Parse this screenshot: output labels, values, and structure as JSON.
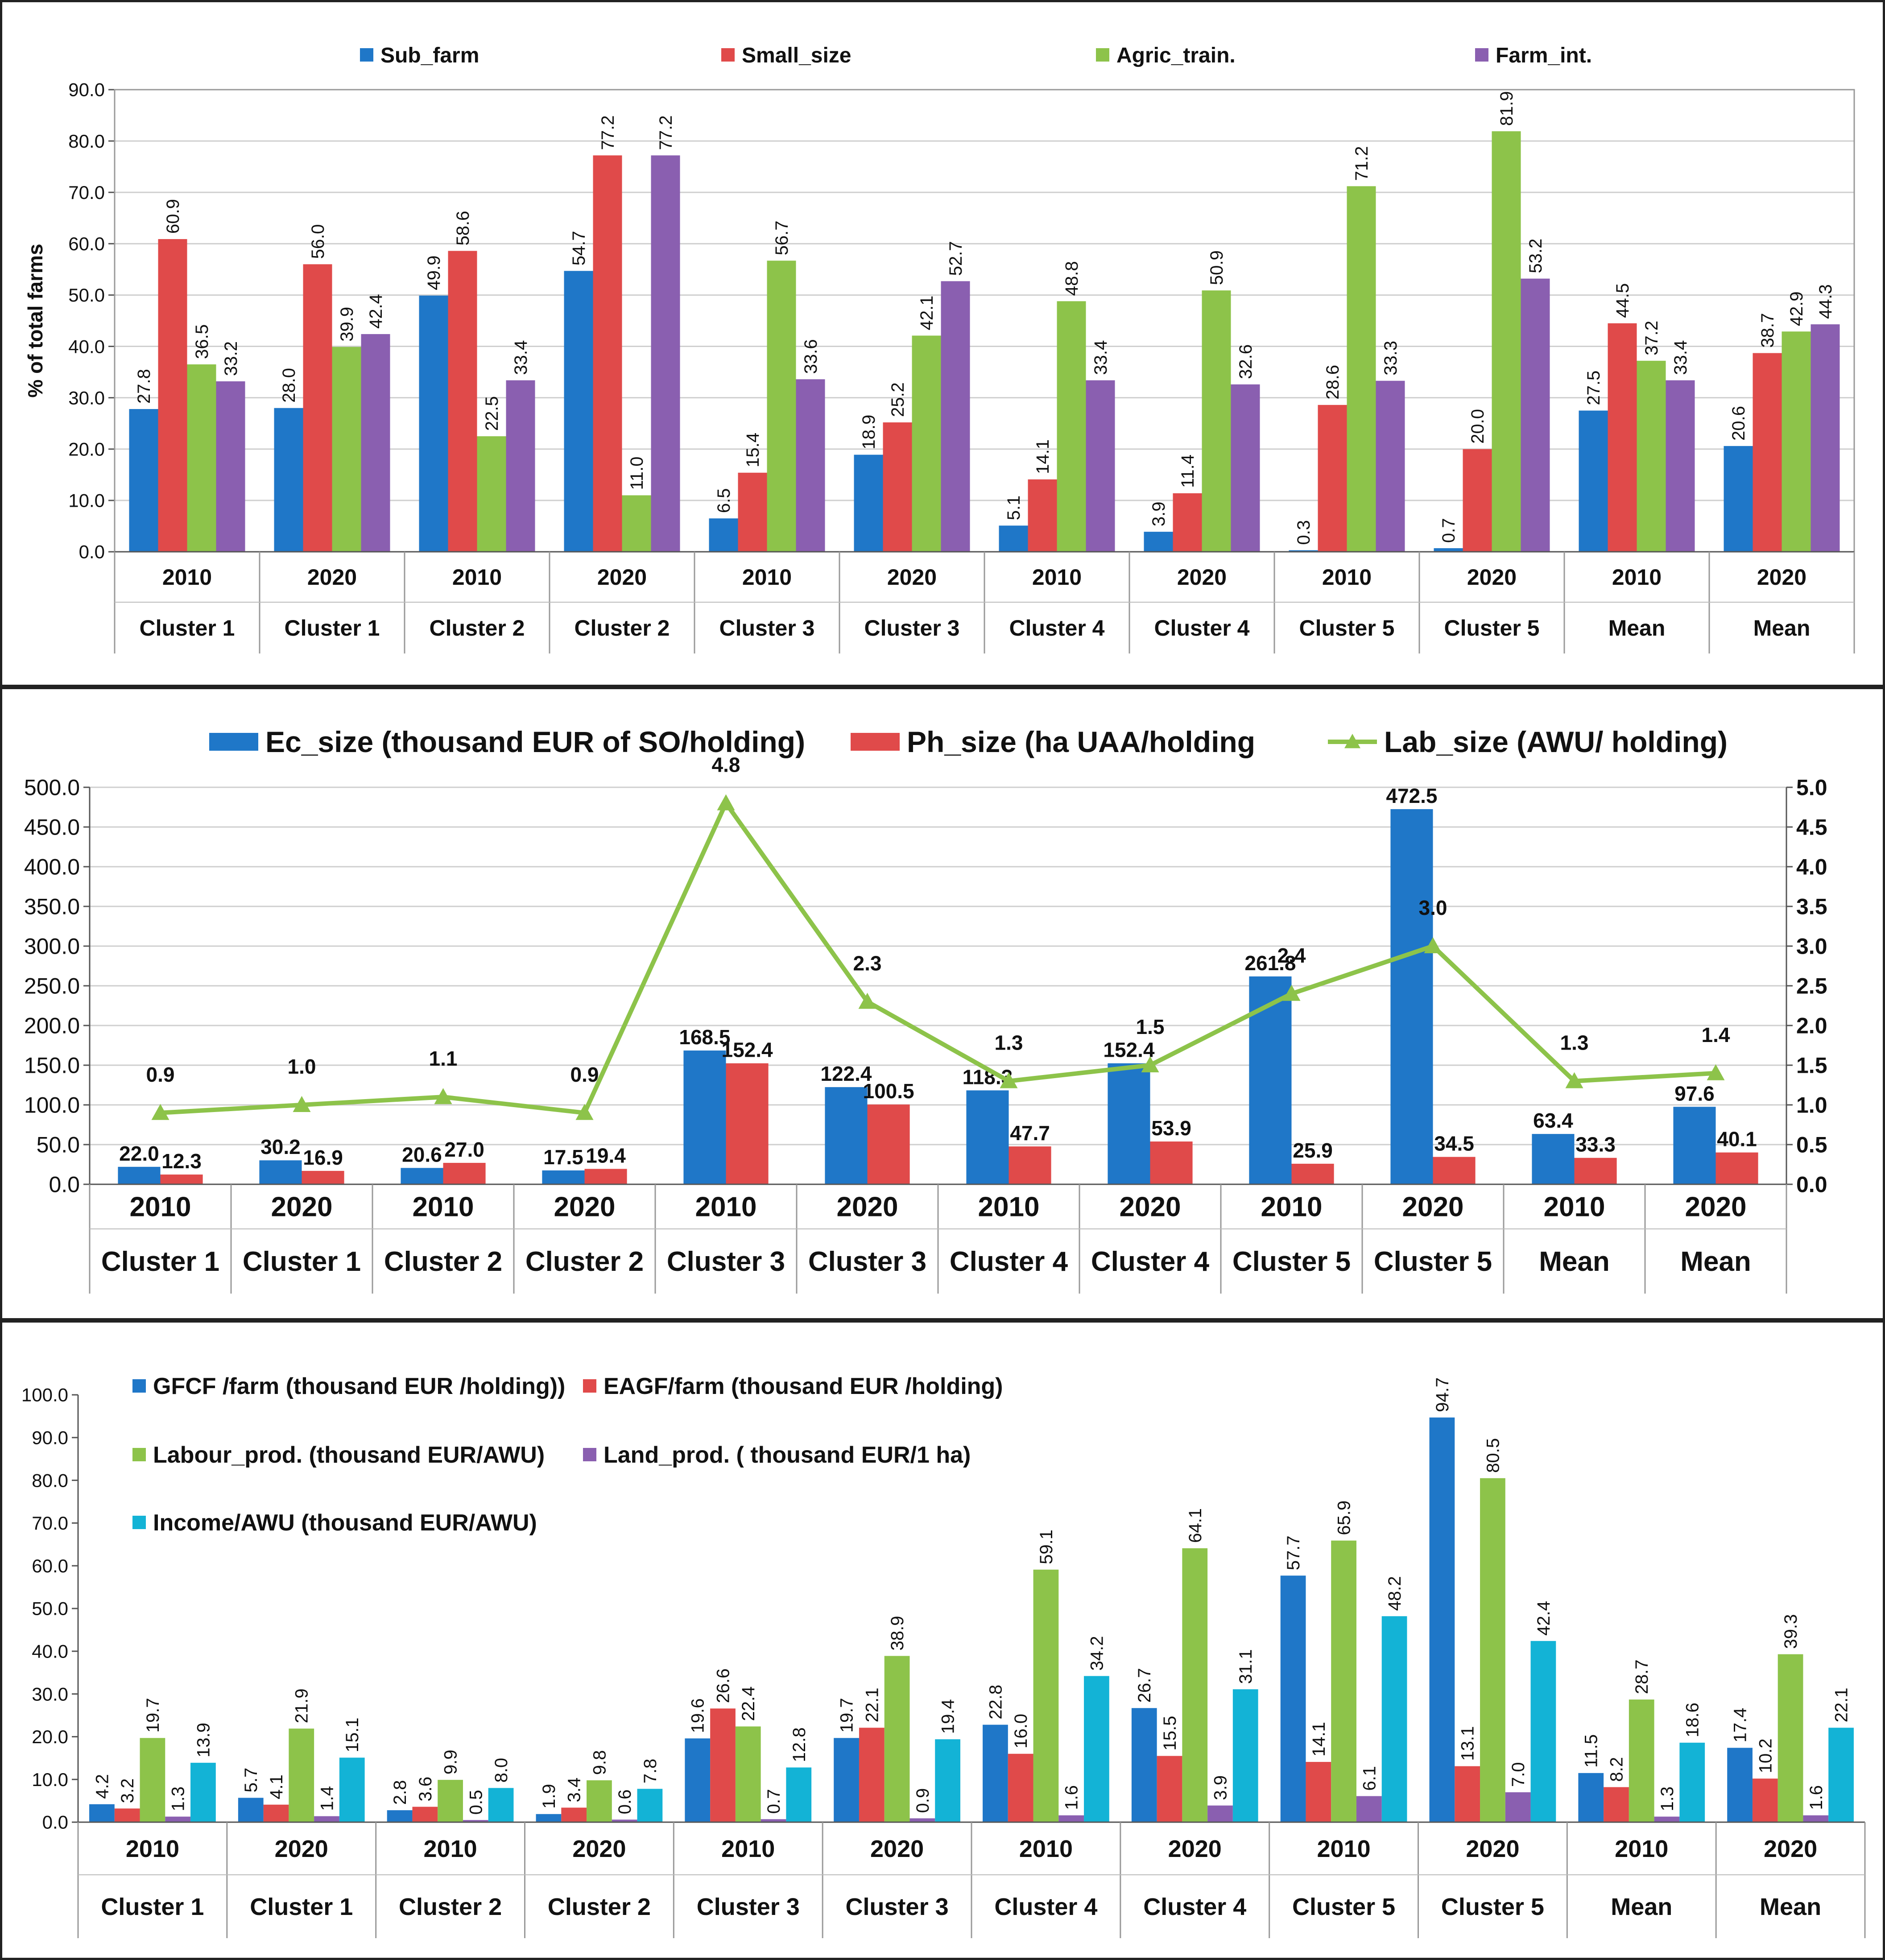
{
  "colors": {
    "blue": "#1f77c8",
    "red": "#e04a4a",
    "green": "#8dc34a",
    "purple": "#8a5fb0",
    "cyan": "#13b3d6",
    "line_green": "#8dc34a",
    "grid": "#cfcfcf"
  },
  "chart_data": [
    {
      "type": "bar",
      "ylabel": "% of total farms",
      "ylim": [
        0,
        90
      ],
      "yticks": [
        "0.0",
        "10.0",
        "20.0",
        "30.0",
        "40.0",
        "50.0",
        "60.0",
        "70.0",
        "80.0",
        "90.0"
      ],
      "grid": true,
      "legend_position": "top",
      "categories_top": [
        "2010",
        "2020",
        "2010",
        "2020",
        "2010",
        "2020",
        "2010",
        "2020",
        "2010",
        "2020",
        "2010",
        "2020"
      ],
      "categories_bottom": [
        "Cluster 1",
        "Cluster 1",
        "Cluster 2",
        "Cluster 2",
        "Cluster 3",
        "Cluster 3",
        "Cluster 4",
        "Cluster 4",
        "Cluster 5",
        "Cluster 5",
        "Mean",
        "Mean"
      ],
      "series": [
        {
          "name": "Sub_farm",
          "color": "#1f77c8",
          "values": [
            27.8,
            28.0,
            49.9,
            54.7,
            6.5,
            18.9,
            5.1,
            3.9,
            0.3,
            0.7,
            27.5,
            20.6
          ],
          "labels": [
            "27.8",
            "28.0",
            "49.9",
            "54.7",
            "6.5",
            "18.9",
            "5.1",
            "3.9",
            "0.3",
            "0.7",
            "27.5",
            "20.6"
          ]
        },
        {
          "name": "Small_size",
          "color": "#e04a4a",
          "values": [
            60.9,
            56.0,
            58.6,
            77.2,
            15.4,
            25.2,
            14.1,
            11.4,
            28.6,
            20.0,
            44.5,
            38.7
          ],
          "labels": [
            "60.9",
            "56.0",
            "58.6",
            "77.2",
            "15.4",
            "25.2",
            "14.1",
            "11.4",
            "28.6",
            "20.0",
            "44.5",
            "38.7"
          ]
        },
        {
          "name": "Agric_train.",
          "color": "#8dc34a",
          "values": [
            36.5,
            39.9,
            22.5,
            11.0,
            56.7,
            42.1,
            48.8,
            50.9,
            71.2,
            81.9,
            37.2,
            42.9
          ],
          "labels": [
            "36.5",
            "39.9",
            "22.5",
            "11.0",
            "56.7",
            "42.1",
            "48.8",
            "50.9",
            "71.2",
            "81.9",
            "37.2",
            "42.9"
          ]
        },
        {
          "name": "Farm_int.",
          "color": "#8a5fb0",
          "values": [
            33.2,
            42.4,
            33.4,
            77.2,
            33.6,
            52.7,
            33.4,
            32.6,
            33.3,
            53.2,
            33.4,
            44.3
          ],
          "labels": [
            "33.2",
            "42.4",
            "33.4",
            "77.2",
            "33.6",
            "52.7",
            "33.4",
            "32.6",
            "33.3",
            "53.2",
            "33.4",
            "44.3"
          ]
        }
      ]
    },
    {
      "type": "bar",
      "ylim": [
        0,
        500
      ],
      "y2lim": [
        0,
        5
      ],
      "yticks": [
        "0.0",
        "50.0",
        "100.0",
        "150.0",
        "200.0",
        "250.0",
        "300.0",
        "350.0",
        "400.0",
        "450.0",
        "500.0"
      ],
      "y2ticks": [
        "0.0",
        "0.5",
        "1.0",
        "1.5",
        "2.0",
        "2.5",
        "3.0",
        "3.5",
        "4.0",
        "4.5",
        "5.0"
      ],
      "grid": true,
      "legend_position": "top",
      "categories_top": [
        "2010",
        "2020",
        "2010",
        "2020",
        "2010",
        "2020",
        "2010",
        "2020",
        "2010",
        "2020",
        "2010",
        "2020"
      ],
      "categories_bottom": [
        "Cluster 1",
        "Cluster 1",
        "Cluster 2",
        "Cluster 2",
        "Cluster 3",
        "Cluster 3",
        "Cluster 4",
        "Cluster 4",
        "Cluster 5",
        "Cluster 5",
        "Mean",
        "Mean"
      ],
      "series": [
        {
          "name": "Ec_size (thousand EUR of SO/holding)",
          "color": "#1f77c8",
          "values": [
            22.0,
            30.2,
            20.6,
            17.5,
            168.5,
            122.4,
            118.3,
            152.4,
            261.8,
            472.5,
            63.4,
            97.6
          ],
          "labels": [
            "22.0",
            "30.2",
            "20.6",
            "17.5",
            "168.5",
            "122.4",
            "118.3",
            "152.4",
            "261.8",
            "472.5",
            "63.4",
            "97.6"
          ]
        },
        {
          "name": "Ph_size (ha  UAA/holding",
          "color": "#e04a4a",
          "values": [
            12.3,
            16.9,
            27.0,
            19.4,
            152.4,
            100.5,
            47.7,
            53.9,
            25.9,
            34.5,
            33.3,
            40.1
          ],
          "labels": [
            "12.3",
            "16.9",
            "27.0",
            "19.4",
            "152.4",
            "100.5",
            "47.7",
            "53.9",
            "25.9",
            "34.5",
            "33.3",
            "40.1"
          ]
        }
      ],
      "line_series": {
        "name": "Lab_size (AWU/ holding)",
        "color": "#8dc34a",
        "values": [
          0.9,
          1.0,
          1.1,
          0.9,
          4.8,
          2.3,
          1.3,
          1.5,
          2.4,
          3.0,
          1.3,
          1.4
        ],
        "labels": [
          "0.9",
          "1.0",
          "1.1",
          "0.9",
          "4.8",
          "2.3",
          "1.3",
          "1.5",
          "2.4",
          "3.0",
          "1.3",
          "1.4"
        ]
      }
    },
    {
      "type": "bar",
      "ylim": [
        0,
        100
      ],
      "yticks": [
        "0.0",
        "10.0",
        "20.0",
        "30.0",
        "40.0",
        "50.0",
        "60.0",
        "70.0",
        "80.0",
        "90.0",
        "100.0"
      ],
      "grid": false,
      "legend_position": "top-left",
      "categories_top": [
        "2010",
        "2020",
        "2010",
        "2020",
        "2010",
        "2020",
        "2010",
        "2020",
        "2010",
        "2020",
        "2010",
        "2020"
      ],
      "categories_bottom": [
        "Cluster 1",
        "Cluster 1",
        "Cluster 2",
        "Cluster 2",
        "Cluster 3",
        "Cluster 3",
        "Cluster 4",
        "Cluster 4",
        "Cluster 5",
        "Cluster 5",
        "Mean",
        "Mean"
      ],
      "series": [
        {
          "name": "GFCF /farm (thousand EUR /holding))",
          "color": "#1f77c8",
          "values": [
            4.2,
            5.7,
            2.8,
            1.9,
            19.6,
            19.7,
            22.8,
            26.7,
            57.7,
            94.7,
            11.5,
            17.4
          ],
          "labels": [
            "4.2",
            "5.7",
            "2.8",
            "1.9",
            "19.6",
            "19.7",
            "22.8",
            "26.7",
            "57.7",
            "94.7",
            "11.5",
            "17.4"
          ]
        },
        {
          "name": "EAGF/farm (thousand EUR /holding)",
          "color": "#e04a4a",
          "values": [
            3.2,
            4.1,
            3.6,
            3.4,
            26.6,
            22.1,
            16.0,
            15.5,
            14.1,
            13.1,
            8.2,
            10.2
          ],
          "labels": [
            "3.2",
            "4.1",
            "3.6",
            "3.4",
            "26.6",
            "22.1",
            "16.0",
            "15.5",
            "14.1",
            "13.1",
            "8.2",
            "10.2"
          ]
        },
        {
          "name": "Labour_prod. (thousand EUR/AWU)",
          "color": "#8dc34a",
          "values": [
            19.7,
            21.9,
            9.9,
            9.8,
            22.4,
            38.9,
            59.1,
            64.1,
            65.9,
            80.5,
            28.7,
            39.3
          ],
          "labels": [
            "19.7",
            "21.9",
            "9.9",
            "9.8",
            "22.4",
            "38.9",
            "59.1",
            "64.1",
            "65.9",
            "80.5",
            "28.7",
            "39.3"
          ]
        },
        {
          "name": "Land_prod. ( thousand EUR/1 ha)",
          "color": "#8a5fb0",
          "values": [
            1.3,
            1.4,
            0.5,
            0.6,
            0.7,
            0.9,
            1.6,
            3.9,
            6.1,
            7.0,
            1.3,
            1.6
          ],
          "labels": [
            "1.3",
            "1.4",
            "0.5",
            "0.6",
            "0.7",
            "0.9",
            "1.6",
            "3.9",
            "6.1",
            "7.0",
            "1.3",
            "1.6"
          ]
        },
        {
          "name": "Income/AWU (thousand EUR/AWU)",
          "color": "#13b3d6",
          "values": [
            13.9,
            15.1,
            8.0,
            7.8,
            12.8,
            19.4,
            34.2,
            31.1,
            48.2,
            42.4,
            18.6,
            22.1
          ],
          "labels": [
            "13.9",
            "15.1",
            "8.0",
            "7.8",
            "12.8",
            "19.4",
            "34.2",
            "31.1",
            "48.2",
            "42.4",
            "18.6",
            "22.1"
          ]
        }
      ]
    }
  ]
}
